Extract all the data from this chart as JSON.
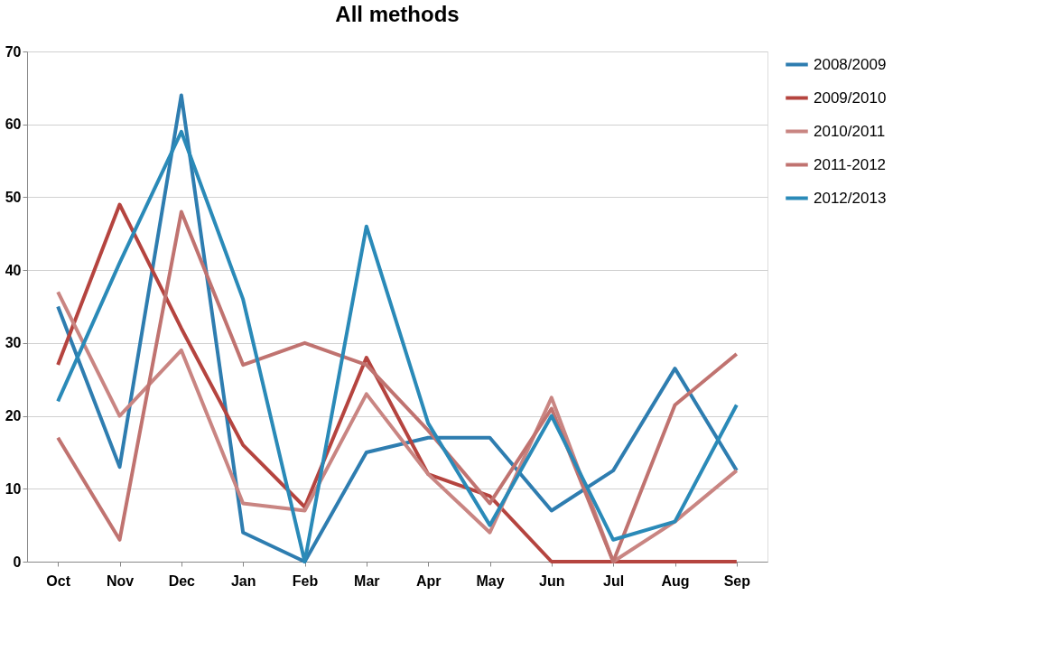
{
  "chart_data": {
    "type": "line",
    "title": "All methods",
    "categories": [
      "Oct",
      "Nov",
      "Dec",
      "Jan",
      "Feb",
      "Mar",
      "Apr",
      "May",
      "Jun",
      "Jul",
      "Aug",
      "Sep"
    ],
    "series": [
      {
        "name": "2008/2009",
        "color": "#2e7db0",
        "values": [
          35,
          13,
          64,
          4,
          0,
          15,
          17,
          17,
          7,
          12.5,
          26.5,
          12.5
        ]
      },
      {
        "name": "2009/2010",
        "color": "#b5443f",
        "values": [
          27,
          49,
          32,
          16,
          7.5,
          28,
          12,
          9,
          0,
          0,
          0,
          0
        ]
      },
      {
        "name": "2010/2011",
        "color": "#c98582",
        "values": [
          37,
          20,
          29,
          8,
          7,
          23,
          12,
          4,
          22.5,
          0,
          5.5,
          12.5
        ]
      },
      {
        "name": "2011-2012",
        "color": "#c07370",
        "values": [
          17,
          3,
          48,
          27,
          30,
          27,
          18,
          8,
          21,
          0,
          21.5,
          28.5
        ]
      },
      {
        "name": "2012/2013",
        "color": "#2a8ab8",
        "values": [
          22,
          41,
          59,
          36,
          0,
          46,
          19,
          5,
          20,
          3,
          5.5,
          21.5
        ]
      }
    ],
    "ylim": [
      0,
      70
    ],
    "yticks": [
      0,
      10,
      20,
      30,
      40,
      50,
      60,
      70
    ],
    "grid": "y",
    "legend": "right",
    "marker": "none",
    "line_style": "solid"
  }
}
